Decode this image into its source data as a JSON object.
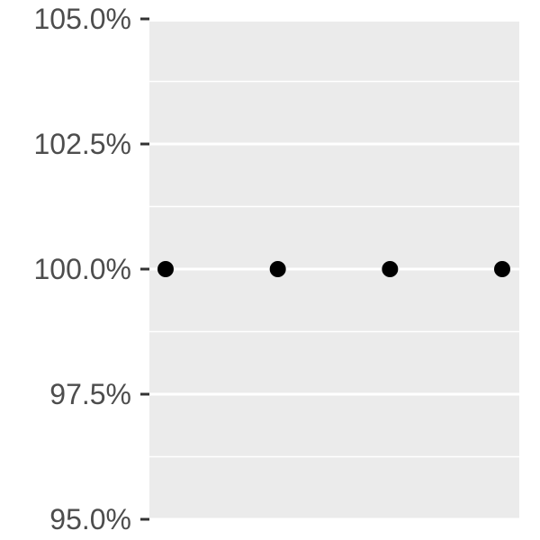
{
  "chart_data": {
    "type": "scatter",
    "title": "",
    "xlabel": "",
    "ylabel": "",
    "x": [
      1,
      2,
      3,
      4
    ],
    "series": [
      {
        "values": [
          100.0,
          100.0,
          100.0,
          100.0
        ],
        "color": "#000000"
      }
    ],
    "ylim": [
      95.0,
      105.0
    ],
    "yticks": [
      95.0,
      97.5,
      100.0,
      102.5,
      105.0
    ],
    "ytick_labels": [
      "95.0%",
      "97.5%",
      "100.0%",
      "102.5%",
      "105.0%"
    ],
    "grid": true,
    "panel_color": "#ebebeb",
    "grid_color": "#ffffff",
    "axis_text_color": "#4d4d4d",
    "legend": "none"
  }
}
